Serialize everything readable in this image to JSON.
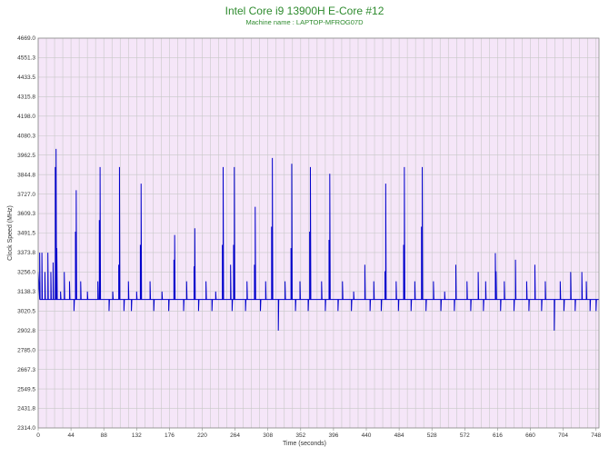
{
  "chart_data": {
    "type": "line",
    "title": "Intel Core i9 13900H E-Core #12",
    "subtitle": "Machine name : LAPTOP-MFROG07D",
    "xlabel": "Time (seconds)",
    "ylabel": "Clock Speed (MHz)",
    "xlim": [
      0,
      752
    ],
    "ylim": [
      2314.0,
      4669.0
    ],
    "x_ticks": [
      0,
      44,
      88,
      132,
      176,
      220,
      264,
      308,
      352,
      396,
      440,
      484,
      528,
      572,
      616,
      660,
      704,
      748
    ],
    "y_ticks": [
      "2314.0",
      "2431.8",
      "2549.5",
      "2667.3",
      "2785.0",
      "2902.8",
      "3020.5",
      "3138.3",
      "3256.0",
      "3373.8",
      "3491.5",
      "3609.3",
      "3727.0",
      "3844.8",
      "3962.5",
      "4080.3",
      "4198.0",
      "4315.8",
      "4433.5",
      "4551.3",
      "4669.0"
    ],
    "grid": true,
    "series_color": "#0000cc",
    "background_color": "#f5e6f8",
    "grid_color": "#c8c8c8",
    "baseline": 3090,
    "spikes": [
      {
        "x": 2,
        "y": 3373
      },
      {
        "x": 5,
        "y": 3373
      },
      {
        "x": 9,
        "y": 3256
      },
      {
        "x": 13,
        "y": 3373
      },
      {
        "x": 17,
        "y": 3256
      },
      {
        "x": 20,
        "y": 3314
      },
      {
        "x": 23,
        "y": 3890
      },
      {
        "x": 24,
        "y": 4000
      },
      {
        "x": 25,
        "y": 3400
      },
      {
        "x": 30,
        "y": 3138
      },
      {
        "x": 35,
        "y": 3256
      },
      {
        "x": 42,
        "y": 3200
      },
      {
        "x": 50,
        "y": 3500
      },
      {
        "x": 51,
        "y": 3750
      },
      {
        "x": 57,
        "y": 3200
      },
      {
        "x": 66,
        "y": 3138
      },
      {
        "x": 80,
        "y": 3200
      },
      {
        "x": 82,
        "y": 3570
      },
      {
        "x": 83,
        "y": 3890
      },
      {
        "x": 100,
        "y": 3138
      },
      {
        "x": 108,
        "y": 3300
      },
      {
        "x": 109,
        "y": 3890
      },
      {
        "x": 121,
        "y": 3200
      },
      {
        "x": 132,
        "y": 3138
      },
      {
        "x": 137,
        "y": 3420
      },
      {
        "x": 138,
        "y": 3790
      },
      {
        "x": 150,
        "y": 3200
      },
      {
        "x": 166,
        "y": 3138
      },
      {
        "x": 182,
        "y": 3330
      },
      {
        "x": 183,
        "y": 3480
      },
      {
        "x": 199,
        "y": 3200
      },
      {
        "x": 209,
        "y": 3290
      },
      {
        "x": 210,
        "y": 3520
      },
      {
        "x": 225,
        "y": 3200
      },
      {
        "x": 238,
        "y": 3138
      },
      {
        "x": 247,
        "y": 3420
      },
      {
        "x": 248,
        "y": 3890
      },
      {
        "x": 258,
        "y": 3300
      },
      {
        "x": 262,
        "y": 3420
      },
      {
        "x": 263,
        "y": 3890
      },
      {
        "x": 280,
        "y": 3200
      },
      {
        "x": 290,
        "y": 3300
      },
      {
        "x": 291,
        "y": 3650
      },
      {
        "x": 305,
        "y": 3200
      },
      {
        "x": 313,
        "y": 3530
      },
      {
        "x": 314,
        "y": 3945
      },
      {
        "x": 331,
        "y": 3200
      },
      {
        "x": 339,
        "y": 3400
      },
      {
        "x": 340,
        "y": 3910
      },
      {
        "x": 351,
        "y": 3200
      },
      {
        "x": 364,
        "y": 3500
      },
      {
        "x": 365,
        "y": 3890
      },
      {
        "x": 380,
        "y": 3200
      },
      {
        "x": 390,
        "y": 3450
      },
      {
        "x": 391,
        "y": 3850
      },
      {
        "x": 408,
        "y": 3200
      },
      {
        "x": 423,
        "y": 3138
      },
      {
        "x": 438,
        "y": 3300
      },
      {
        "x": 450,
        "y": 3200
      },
      {
        "x": 465,
        "y": 3260
      },
      {
        "x": 466,
        "y": 3790
      },
      {
        "x": 480,
        "y": 3200
      },
      {
        "x": 490,
        "y": 3420
      },
      {
        "x": 491,
        "y": 3890
      },
      {
        "x": 505,
        "y": 3200
      },
      {
        "x": 514,
        "y": 3530
      },
      {
        "x": 515,
        "y": 3890
      },
      {
        "x": 530,
        "y": 3200
      },
      {
        "x": 545,
        "y": 3138
      },
      {
        "x": 560,
        "y": 3300
      },
      {
        "x": 575,
        "y": 3200
      },
      {
        "x": 590,
        "y": 3256
      },
      {
        "x": 600,
        "y": 3200
      },
      {
        "x": 613,
        "y": 3370
      },
      {
        "x": 614,
        "y": 3260
      },
      {
        "x": 625,
        "y": 3200
      },
      {
        "x": 640,
        "y": 3330
      },
      {
        "x": 655,
        "y": 3200
      },
      {
        "x": 666,
        "y": 3300
      },
      {
        "x": 680,
        "y": 3200
      },
      {
        "x": 700,
        "y": 3200
      },
      {
        "x": 714,
        "y": 3256
      },
      {
        "x": 729,
        "y": 3256
      },
      {
        "x": 735,
        "y": 3200
      }
    ],
    "dips": [
      {
        "x": 48,
        "y": 3020
      },
      {
        "x": 95,
        "y": 3020
      },
      {
        "x": 115,
        "y": 3020
      },
      {
        "x": 125,
        "y": 3020
      },
      {
        "x": 155,
        "y": 3020
      },
      {
        "x": 175,
        "y": 3020
      },
      {
        "x": 195,
        "y": 3020
      },
      {
        "x": 215,
        "y": 3020
      },
      {
        "x": 233,
        "y": 3020
      },
      {
        "x": 260,
        "y": 3020
      },
      {
        "x": 278,
        "y": 3020
      },
      {
        "x": 298,
        "y": 3020
      },
      {
        "x": 322,
        "y": 2902
      },
      {
        "x": 345,
        "y": 3020
      },
      {
        "x": 362,
        "y": 3020
      },
      {
        "x": 385,
        "y": 3020
      },
      {
        "x": 402,
        "y": 3020
      },
      {
        "x": 420,
        "y": 3020
      },
      {
        "x": 445,
        "y": 3020
      },
      {
        "x": 460,
        "y": 3020
      },
      {
        "x": 483,
        "y": 3020
      },
      {
        "x": 500,
        "y": 3020
      },
      {
        "x": 520,
        "y": 3020
      },
      {
        "x": 540,
        "y": 3020
      },
      {
        "x": 558,
        "y": 3020
      },
      {
        "x": 580,
        "y": 3020
      },
      {
        "x": 597,
        "y": 3020
      },
      {
        "x": 620,
        "y": 3020
      },
      {
        "x": 638,
        "y": 3020
      },
      {
        "x": 658,
        "y": 3020
      },
      {
        "x": 675,
        "y": 3020
      },
      {
        "x": 692,
        "y": 2902
      },
      {
        "x": 705,
        "y": 3020
      },
      {
        "x": 720,
        "y": 3020
      },
      {
        "x": 740,
        "y": 3020
      },
      {
        "x": 748,
        "y": 3020
      }
    ]
  }
}
